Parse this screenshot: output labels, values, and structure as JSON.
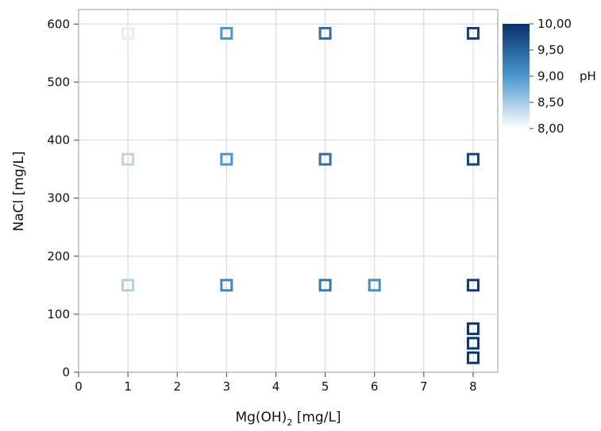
{
  "chart_data": {
    "type": "scatter",
    "title": "",
    "xlabel_main": "Mg(OH)",
    "xlabel_sub": "2",
    "xlabel_unit": " [mg/L]",
    "ylabel": "NaCl [mg/L]",
    "xlim": [
      0,
      8.5
    ],
    "ylim": [
      0,
      625
    ],
    "xticks": [
      "0",
      "1",
      "2",
      "3",
      "4",
      "5",
      "6",
      "7",
      "8"
    ],
    "yticks": [
      "0",
      "100",
      "200",
      "300",
      "400",
      "500",
      "600"
    ],
    "grid": true,
    "marker": "open-square",
    "colorbar": {
      "title": "pH",
      "min": 8.0,
      "max": 10.0,
      "ticks": [
        "10,00",
        "9,50",
        "9,00",
        "8,50",
        "8,00"
      ],
      "color_low": "#ffffff",
      "color_mid": "#4a98d0",
      "color_high": "#08306b"
    },
    "points": [
      {
        "x": 1,
        "y": 584,
        "ph": 8.15
      },
      {
        "x": 1,
        "y": 367,
        "ph": 8.4
      },
      {
        "x": 1,
        "y": 150,
        "ph": 8.45
      },
      {
        "x": 3,
        "y": 584,
        "ph": 9.0
      },
      {
        "x": 3,
        "y": 367,
        "ph": 9.0
      },
      {
        "x": 3,
        "y": 150,
        "ph": 9.15
      },
      {
        "x": 5,
        "y": 584,
        "ph": 9.4
      },
      {
        "x": 5,
        "y": 367,
        "ph": 9.4
      },
      {
        "x": 5,
        "y": 150,
        "ph": 9.3
      },
      {
        "x": 6,
        "y": 150,
        "ph": 9.1
      },
      {
        "x": 8,
        "y": 584,
        "ph": 9.85
      },
      {
        "x": 8,
        "y": 367,
        "ph": 9.8
      },
      {
        "x": 8,
        "y": 150,
        "ph": 9.9
      },
      {
        "x": 8,
        "y": 75,
        "ph": 9.95
      },
      {
        "x": 8,
        "y": 50,
        "ph": 9.95
      },
      {
        "x": 8,
        "y": 25,
        "ph": 9.95
      }
    ]
  }
}
